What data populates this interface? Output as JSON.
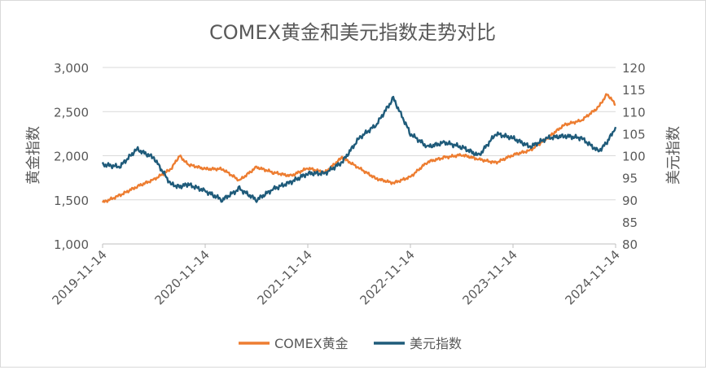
{
  "chart_data": {
    "type": "line",
    "title": "COMEX黄金和美元指数走势对比",
    "ylabel_left": "黄金指数",
    "ylabel_right": "美元指数",
    "ylim_left": [
      1000,
      3000
    ],
    "yticks_left": [
      "1,000",
      "1,500",
      "2,000",
      "2,500",
      "3,000"
    ],
    "ylim_right": [
      80,
      120
    ],
    "yticks_right": [
      "80",
      "85",
      "90",
      "95",
      "100",
      "105",
      "110",
      "115",
      "120"
    ],
    "x_tick_labels": [
      "2019-11-14",
      "2020-11-14",
      "2021-11-14",
      "2022-11-14",
      "2023-11-14",
      "2024-11-14"
    ],
    "x": [
      "2019-11",
      "2020-01",
      "2020-03",
      "2020-05",
      "2020-07",
      "2020-08",
      "2020-09",
      "2020-11",
      "2021-01",
      "2021-03",
      "2021-05",
      "2021-07",
      "2021-09",
      "2021-11",
      "2022-01",
      "2022-03",
      "2022-05",
      "2022-07",
      "2022-09",
      "2022-11",
      "2023-01",
      "2023-03",
      "2023-05",
      "2023-07",
      "2023-09",
      "2023-11",
      "2024-01",
      "2024-03",
      "2024-05",
      "2024-07",
      "2024-09",
      "2024-10",
      "2024-11"
    ],
    "grid": "horizontal",
    "legend_position": "bottom",
    "series": [
      {
        "name": "COMEX黄金",
        "axis": "left",
        "color": "#ED7D31",
        "values": [
          1470,
          1550,
          1650,
          1730,
          1850,
          2000,
          1900,
          1850,
          1850,
          1720,
          1870,
          1810,
          1770,
          1860,
          1810,
          1980,
          1860,
          1740,
          1690,
          1760,
          1930,
          1980,
          2010,
          1960,
          1920,
          2010,
          2060,
          2200,
          2350,
          2400,
          2550,
          2700,
          2580
        ]
      },
      {
        "name": "美元指数",
        "axis": "right",
        "color": "#1F5B7A",
        "values": [
          98.0,
          97.5,
          101.5,
          99.5,
          93.5,
          93.0,
          93.5,
          92.0,
          90.0,
          92.5,
          90.0,
          92.5,
          94.0,
          96.0,
          96.0,
          98.5,
          104.0,
          107.0,
          113.0,
          105.0,
          102.0,
          103.0,
          102.0,
          100.0,
          105.0,
          104.0,
          102.0,
          104.0,
          104.5,
          104.0,
          101.0,
          103.0,
          106.5
        ]
      }
    ]
  }
}
